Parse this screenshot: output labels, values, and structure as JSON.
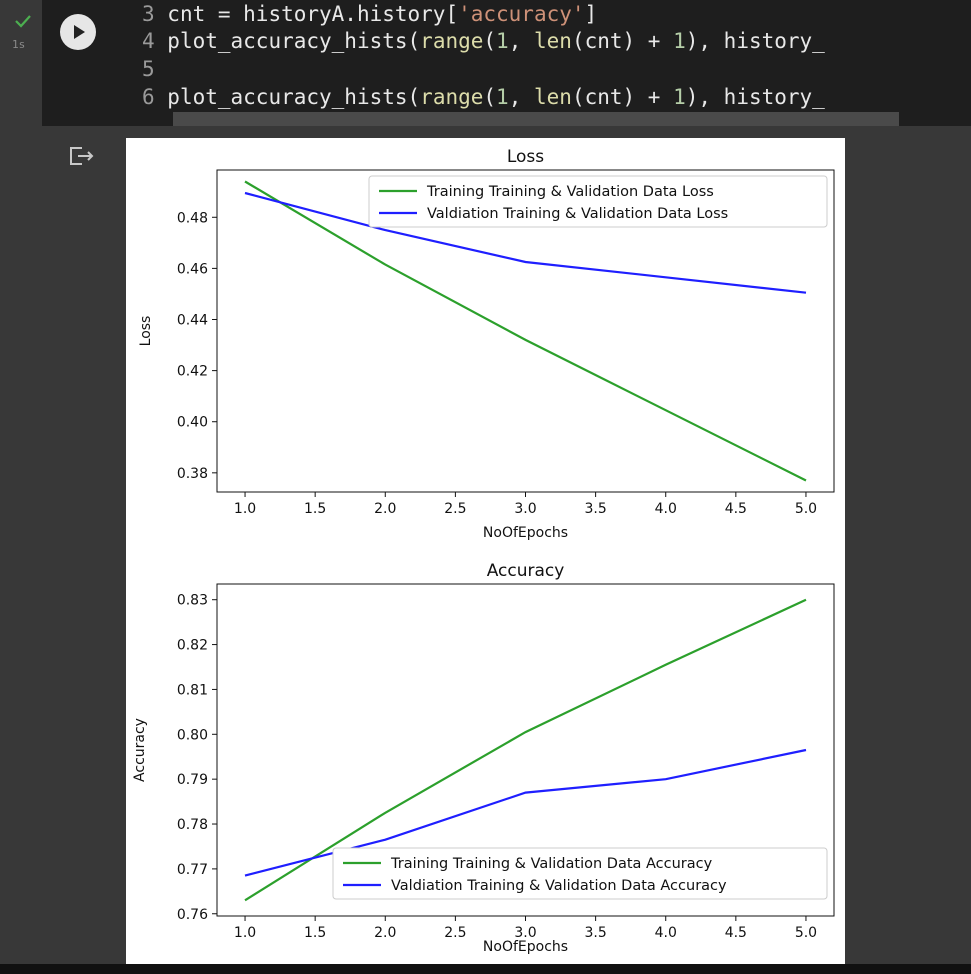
{
  "cell": {
    "status": "1s",
    "code_lines": [
      {
        "num": "3",
        "segments": [
          {
            "t": "cnt = historyA.history[",
            "c": "plain"
          },
          {
            "t": "'accuracy'",
            "c": "str"
          },
          {
            "t": "]",
            "c": "plain"
          }
        ]
      },
      {
        "num": "4",
        "segments": [
          {
            "t": "plot_accuracy_hists(",
            "c": "plain"
          },
          {
            "t": "range",
            "c": "fn"
          },
          {
            "t": "(",
            "c": "plain"
          },
          {
            "t": "1",
            "c": "num"
          },
          {
            "t": ", ",
            "c": "plain"
          },
          {
            "t": "len",
            "c": "fn"
          },
          {
            "t": "(cnt) + ",
            "c": "plain"
          },
          {
            "t": "1",
            "c": "num"
          },
          {
            "t": "), history_",
            "c": "plain"
          }
        ]
      },
      {
        "num": "5",
        "segments": []
      },
      {
        "num": "6",
        "segments": [
          {
            "t": "plot_accuracy_hists(",
            "c": "plain"
          },
          {
            "t": "range",
            "c": "fn"
          },
          {
            "t": "(",
            "c": "plain"
          },
          {
            "t": "1",
            "c": "num"
          },
          {
            "t": ", ",
            "c": "plain"
          },
          {
            "t": "len",
            "c": "fn"
          },
          {
            "t": "(cnt) + ",
            "c": "plain"
          },
          {
            "t": "1",
            "c": "num"
          },
          {
            "t": "), history_",
            "c": "plain"
          }
        ]
      }
    ]
  },
  "colors": {
    "train": "#2ca02c",
    "valid": "#1f1fff"
  },
  "chart_data": [
    {
      "type": "line",
      "title": "Loss",
      "xlabel": "NoOfEpochs",
      "ylabel": "Loss",
      "x": [
        1,
        2,
        3,
        4,
        5
      ],
      "xlim": [
        0.8,
        5.2
      ],
      "ylim": [
        0.3725,
        0.4985
      ],
      "xticks": [
        1.0,
        1.5,
        2.0,
        2.5,
        3.0,
        3.5,
        4.0,
        4.5,
        5.0
      ],
      "xtick_labels": [
        "1.0",
        "1.5",
        "2.0",
        "2.5",
        "3.0",
        "3.5",
        "4.0",
        "4.5",
        "5.0"
      ],
      "yticks": [
        0.38,
        0.4,
        0.42,
        0.44,
        0.46,
        0.48
      ],
      "ytick_labels": [
        "0.38",
        "0.40",
        "0.42",
        "0.44",
        "0.46",
        "0.48"
      ],
      "legend_position": "top-right",
      "series": [
        {
          "name": "Training Training & Validation Data Loss",
          "color": "#2ca02c",
          "values": [
            0.494,
            0.4615,
            0.432,
            0.4045,
            0.377
          ]
        },
        {
          "name": "Valdiation Training & Validation Data Loss",
          "color": "#1f1fff",
          "values": [
            0.4895,
            0.475,
            0.4625,
            0.4565,
            0.4505
          ]
        }
      ]
    },
    {
      "type": "line",
      "title": "Accuracy",
      "xlabel": "NoOfEpochs",
      "ylabel": "Accuracy",
      "x": [
        1,
        2,
        3,
        4,
        5
      ],
      "xlim": [
        0.8,
        5.2
      ],
      "ylim": [
        0.7595,
        0.8335
      ],
      "xticks": [
        1.0,
        1.5,
        2.0,
        2.5,
        3.0,
        3.5,
        4.0,
        4.5,
        5.0
      ],
      "xtick_labels": [
        "1.0",
        "1.5",
        "2.0",
        "2.5",
        "3.0",
        "3.5",
        "4.0",
        "4.5",
        "5.0"
      ],
      "yticks": [
        0.76,
        0.77,
        0.78,
        0.79,
        0.8,
        0.81,
        0.82,
        0.83
      ],
      "ytick_labels": [
        "0.76",
        "0.77",
        "0.78",
        "0.79",
        "0.80",
        "0.81",
        "0.82",
        "0.83"
      ],
      "legend_position": "bottom-right",
      "series": [
        {
          "name": "Training Training & Validation Data Accuracy",
          "color": "#2ca02c",
          "values": [
            0.763,
            0.7825,
            0.8005,
            0.8155,
            0.83
          ]
        },
        {
          "name": "Valdiation Training & Validation Data Accuracy",
          "color": "#1f1fff",
          "values": [
            0.7685,
            0.7765,
            0.787,
            0.79,
            0.7965
          ]
        }
      ]
    }
  ]
}
